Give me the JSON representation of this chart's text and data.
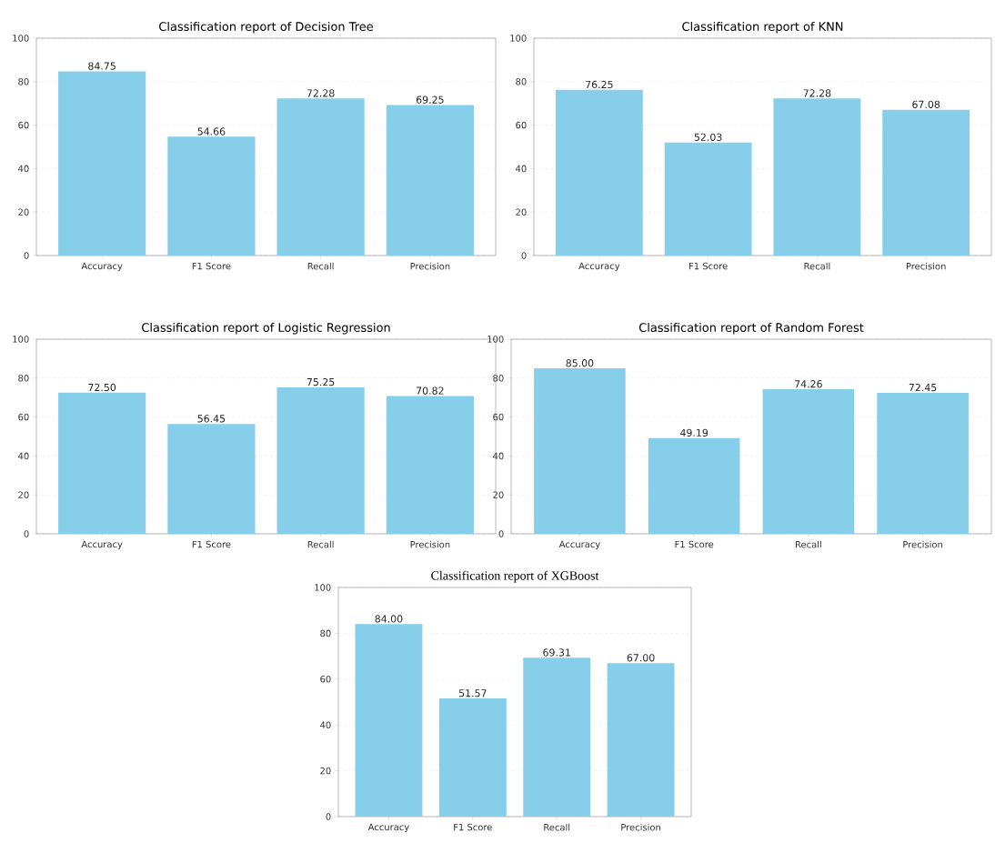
{
  "chart_data": [
    {
      "type": "bar",
      "title": "Classification report of Decision Tree",
      "categories": [
        "Accuracy",
        "F1 Score",
        "Recall",
        "Precision"
      ],
      "values": [
        84.75,
        54.66,
        72.28,
        69.25
      ],
      "value_labels": [
        "84.75",
        "54.66",
        "72.28",
        "69.25"
      ],
      "color": "#87ceeb",
      "ylim": [
        0,
        100
      ],
      "yticks": [
        0,
        20,
        40,
        60,
        80,
        100
      ],
      "grid": "y"
    },
    {
      "type": "bar",
      "title": "Classification report of KNN",
      "categories": [
        "Accuracy",
        "F1 Score",
        "Recall",
        "Precision"
      ],
      "values": [
        76.25,
        52.03,
        72.28,
        67.08
      ],
      "value_labels": [
        "76.25",
        "52.03",
        "72.28",
        "67.08"
      ],
      "color": "#87ceeb",
      "ylim": [
        0,
        100
      ],
      "yticks": [
        0,
        20,
        40,
        60,
        80,
        100
      ],
      "grid": "y"
    },
    {
      "type": "bar",
      "title": "Classification report of Logistic Regression",
      "categories": [
        "Accuracy",
        "F1 Score",
        "Recall",
        "Precision"
      ],
      "values": [
        72.5,
        56.45,
        75.25,
        70.82
      ],
      "value_labels": [
        "72.50",
        "56.45",
        "75.25",
        "70.82"
      ],
      "color": "#87ceeb",
      "ylim": [
        0,
        100
      ],
      "yticks": [
        0,
        20,
        40,
        60,
        80,
        100
      ],
      "grid": "y"
    },
    {
      "type": "bar",
      "title": "Classification report of Random Forest",
      "categories": [
        "Accuracy",
        "F1 Score",
        "Recall",
        "Precision"
      ],
      "values": [
        85.0,
        49.19,
        74.26,
        72.45
      ],
      "value_labels": [
        "85.00",
        "49.19",
        "74.26",
        "72.45"
      ],
      "color": "#87ceeb",
      "ylim": [
        0,
        100
      ],
      "yticks": [
        0,
        20,
        40,
        60,
        80,
        100
      ],
      "grid": "y"
    },
    {
      "type": "bar",
      "title": "Classification report of XGBoost",
      "categories": [
        "Accuracy",
        "F1 Score",
        "Recall",
        "Precision"
      ],
      "values": [
        84.0,
        51.57,
        69.31,
        67.0
      ],
      "value_labels": [
        "84.00",
        "51.57",
        "69.31",
        "67.00"
      ],
      "color": "#87ceeb",
      "ylim": [
        0,
        100
      ],
      "yticks": [
        0,
        20,
        40,
        60,
        80,
        100
      ],
      "grid": "y"
    }
  ]
}
